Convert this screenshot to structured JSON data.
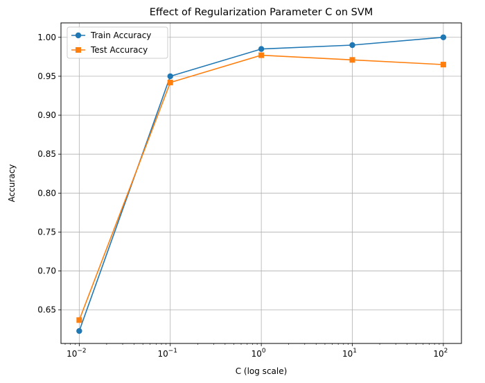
{
  "chart_data": {
    "type": "line",
    "title": "Effect of Regularization Parameter C on SVM",
    "xlabel": "C (log scale)",
    "ylabel": "Accuracy",
    "x_scale": "log",
    "x": [
      0.01,
      0.1,
      1,
      10,
      100
    ],
    "x_tick_base": "10",
    "x_tick_exponents": [
      "−2",
      "−1",
      "0",
      "1",
      "2"
    ],
    "xlim": [
      0.0063,
      158
    ],
    "ylim": [
      0.607,
      1.0185
    ],
    "y_ticks": [
      "0.65",
      "0.70",
      "0.75",
      "0.80",
      "0.85",
      "0.90",
      "0.95",
      "1.00"
    ],
    "grid": true,
    "legend_position": "top-left",
    "series": [
      {
        "name": "Train Accuracy",
        "color": "#1f77b4",
        "marker": "circle",
        "values": [
          0.623,
          0.95,
          0.985,
          0.99,
          1.0
        ]
      },
      {
        "name": "Test Accuracy",
        "color": "#ff7f0e",
        "marker": "square",
        "values": [
          0.637,
          0.942,
          0.977,
          0.971,
          0.965
        ]
      }
    ]
  }
}
